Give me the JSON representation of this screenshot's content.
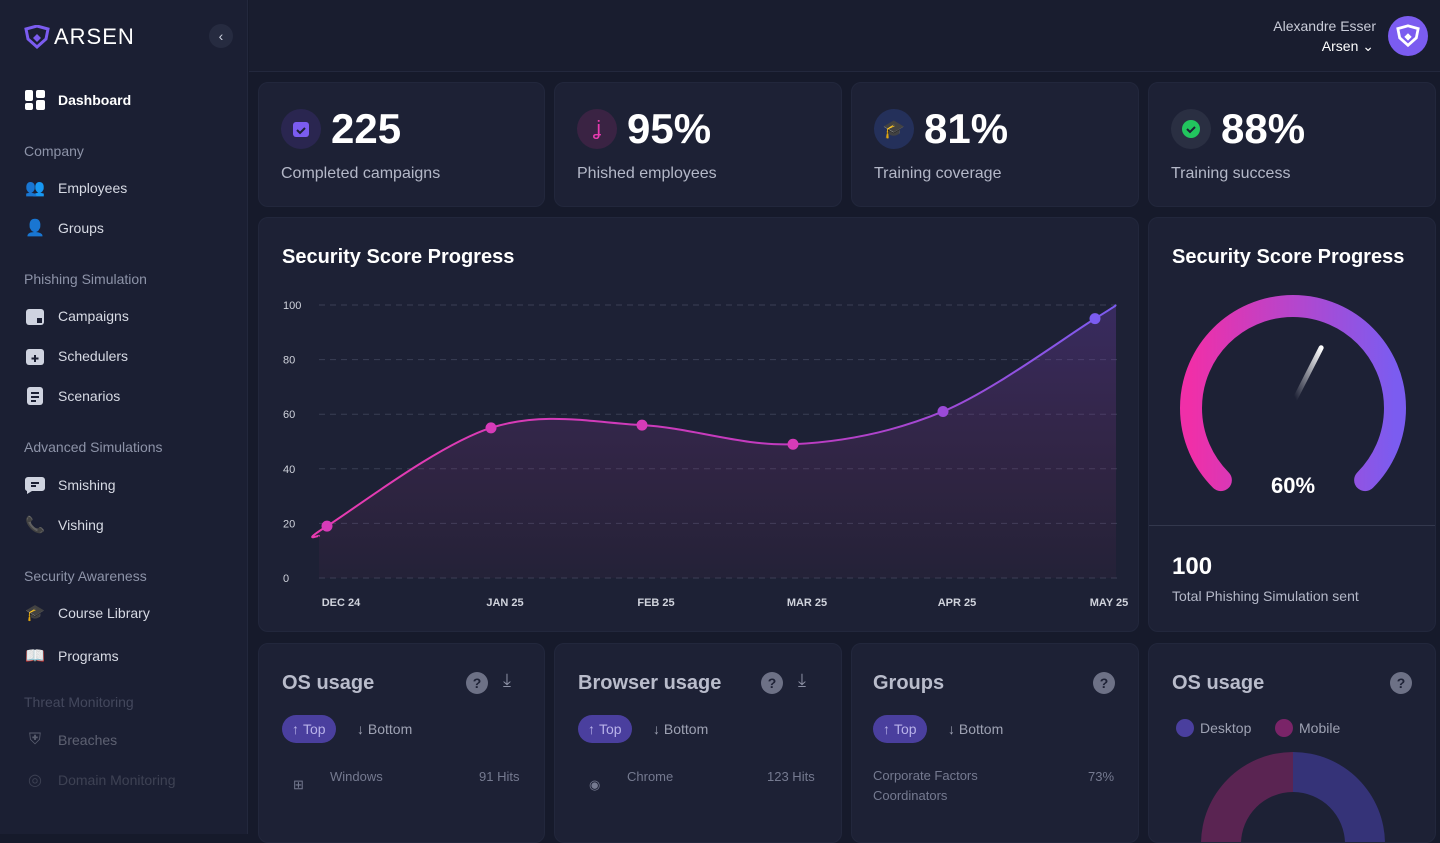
{
  "brand": {
    "name": "ARSEN",
    "accent": "#7b5cf0",
    "pink": "#e93bb0"
  },
  "sidebar": {
    "dashboard": "Dashboard",
    "sections": [
      {
        "title": "Company",
        "items": [
          {
            "label": "Employees",
            "icon": "users-icon"
          },
          {
            "label": "Groups",
            "icon": "user-group-icon"
          }
        ]
      },
      {
        "title": "Phishing Simulation",
        "items": [
          {
            "label": "Campaigns",
            "icon": "calendar-icon"
          },
          {
            "label": "Schedulers",
            "icon": "calendar-plus-icon"
          },
          {
            "label": "Scenarios",
            "icon": "document-icon"
          }
        ]
      },
      {
        "title": "Advanced Simulations",
        "items": [
          {
            "label": "Smishing",
            "icon": "chat-icon"
          },
          {
            "label": "Vishing",
            "icon": "phone-icon"
          }
        ]
      },
      {
        "title": "Security Awareness",
        "items": [
          {
            "label": "Course Library",
            "icon": "graduate-icon"
          },
          {
            "label": "Programs",
            "icon": "book-icon"
          }
        ]
      },
      {
        "title": "Threat Monitoring",
        "items": [
          {
            "label": "Breaches",
            "icon": "shield-alert-icon"
          },
          {
            "label": "Domain Monitoring",
            "icon": "radar-icon"
          }
        ]
      }
    ]
  },
  "header": {
    "user_name": "Alexandre Esser",
    "org": "Arsen"
  },
  "stats": [
    {
      "value": "225",
      "label": "Completed campaigns",
      "color": "#7b5cf0"
    },
    {
      "value": "95%",
      "label": "Phished employees",
      "color": "#e93bb0"
    },
    {
      "value": "81%",
      "label": "Training coverage",
      "color": "#3b6cf0"
    },
    {
      "value": "88%",
      "label": "Training success",
      "color": "#22c55e"
    }
  ],
  "chart_data": {
    "type": "line",
    "title": "Security Score Progress",
    "categories": [
      "DEC 24",
      "JAN 25",
      "FEB 25",
      "MAR 25",
      "APR 25",
      "MAY 25"
    ],
    "values": [
      19,
      55,
      56,
      49,
      61,
      95
    ],
    "ylim": [
      0,
      100
    ],
    "yticks": [
      "0",
      "20",
      "40",
      "60",
      "80",
      "100"
    ],
    "grid": true
  },
  "gauge": {
    "title": "Security Score Progress",
    "value": 60,
    "value_label": "60%",
    "total": "100",
    "total_label": "Total Phishing Simulation sent"
  },
  "bottom": {
    "os": {
      "title": "OS usage",
      "top": "Top",
      "bottom": "Bottom",
      "row_name": "Windows",
      "row_value": "91 Hits"
    },
    "browser": {
      "title": "Browser usage",
      "top": "Top",
      "bottom": "Bottom",
      "row_name": "Chrome",
      "row_value": "123 Hits"
    },
    "groups": {
      "title": "Groups",
      "top": "Top",
      "bottom": "Bottom",
      "row_name": "Corporate Factors Coordinators",
      "row_value": "73%"
    },
    "os2": {
      "title": "OS usage",
      "legend": [
        "Desktop",
        "Mobile"
      ]
    }
  }
}
